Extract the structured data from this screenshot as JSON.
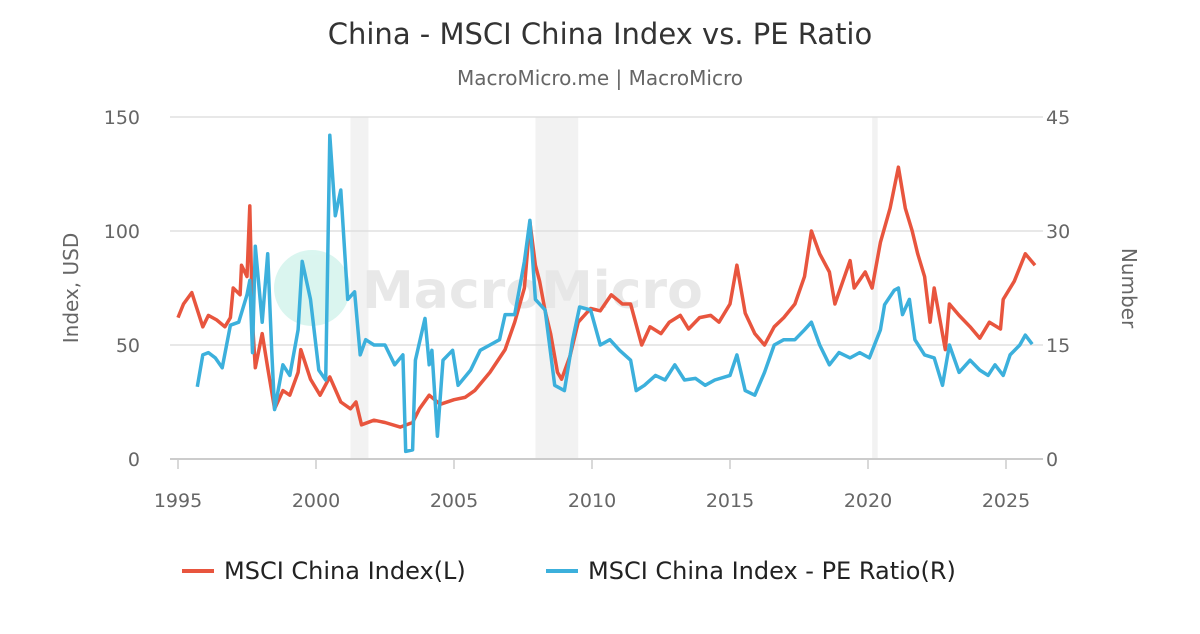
{
  "chart_data": {
    "type": "line",
    "title": "China - MSCI China Index vs. PE Ratio",
    "subtitle": "MacroMicro.me | MacroMicro",
    "watermark": "MacroMicro",
    "x_ticks": [
      "1995",
      "2000",
      "2005",
      "2010",
      "2015",
      "2020",
      "2025"
    ],
    "xlim": [
      1995,
      2026.4
    ],
    "y_left": {
      "label": "Index, USD",
      "ylim": [
        0,
        150
      ],
      "ticks": [
        "0",
        "50",
        "100",
        "150"
      ]
    },
    "y_right": {
      "label": "Number",
      "ylim": [
        0,
        45
      ],
      "ticks": [
        "0",
        "15",
        "30",
        "45"
      ]
    },
    "grid": true,
    "legend_position": "bottom",
    "shaded_periods": [
      [
        2001.25,
        2001.9
      ],
      [
        2007.95,
        2009.5
      ],
      [
        2020.15,
        2020.35
      ]
    ],
    "colors": {
      "index": "#e8553e",
      "pe": "#3cb0dc",
      "shade": "#f2f2f2"
    },
    "series": [
      {
        "name": "MSCI China Index(L)",
        "axis": "left",
        "x": [
          1995.0,
          1995.2,
          1995.5,
          1995.9,
          1996.1,
          1996.4,
          1996.7,
          1996.9,
          1997.0,
          1997.25,
          1997.3,
          1997.5,
          1997.6,
          1997.7,
          1997.8,
          1998.05,
          1998.25,
          1998.5,
          1998.8,
          1999.05,
          1999.35,
          1999.45,
          1999.8,
          2000.15,
          2000.5,
          2000.9,
          2001.25,
          2001.45,
          2001.65,
          2002.1,
          2002.5,
          2003.05,
          2003.5,
          2003.75,
          2004.1,
          2004.5,
          2005.0,
          2005.4,
          2005.75,
          2006.3,
          2006.85,
          2007.2,
          2007.55,
          2007.75,
          2007.95,
          2008.1,
          2008.3,
          2008.5,
          2008.75,
          2008.9,
          2009.2,
          2009.5,
          2009.95,
          2010.3,
          2010.7,
          2011.1,
          2011.4,
          2011.8,
          2012.1,
          2012.5,
          2012.8,
          2013.2,
          2013.5,
          2013.9,
          2014.3,
          2014.6,
          2015.0,
          2015.25,
          2015.55,
          2015.9,
          2016.25,
          2016.6,
          2016.95,
          2017.35,
          2017.7,
          2017.95,
          2018.25,
          2018.6,
          2018.8,
          2019.15,
          2019.35,
          2019.5,
          2019.9,
          2020.15,
          2020.45,
          2020.8,
          2021.1,
          2021.35,
          2021.6,
          2021.8,
          2022.05,
          2022.25,
          2022.4,
          2022.8,
          2022.95,
          2023.3,
          2023.7,
          2024.05,
          2024.4,
          2024.8,
          2024.9,
          2025.3,
          2025.7,
          2026.05
        ],
        "values": [
          62,
          68,
          73,
          58,
          63,
          61,
          58,
          62,
          75,
          72,
          85,
          80,
          111,
          60,
          40,
          55,
          40,
          22,
          30,
          28,
          38,
          48,
          35,
          28,
          36,
          25,
          22,
          25,
          15,
          17,
          16,
          14,
          16,
          22,
          28,
          24,
          26,
          27,
          30,
          38,
          48,
          60,
          75,
          104,
          85,
          78,
          65,
          55,
          38,
          35,
          45,
          60,
          66,
          65,
          72,
          68,
          68,
          50,
          58,
          55,
          60,
          63,
          57,
          62,
          63,
          60,
          68,
          85,
          64,
          55,
          50,
          58,
          62,
          68,
          80,
          100,
          90,
          82,
          68,
          80,
          87,
          75,
          82,
          75,
          95,
          110,
          128,
          110,
          100,
          90,
          80,
          60,
          75,
          48,
          68,
          63,
          58,
          53,
          60,
          57,
          70,
          78,
          90,
          85
        ]
      },
      {
        "name": "MSCI China Index - PE Ratio(R)",
        "axis": "right",
        "x": [
          1995.7,
          1995.9,
          1996.1,
          1996.35,
          1996.6,
          1996.9,
          1997.2,
          1997.5,
          1997.6,
          1997.7,
          1997.8,
          1998.05,
          1998.25,
          1998.4,
          1998.5,
          1998.8,
          1999.05,
          1999.35,
          1999.5,
          1999.8,
          2000.1,
          2000.35,
          2000.5,
          2000.7,
          2000.9,
          2001.15,
          2001.4,
          2001.6,
          2001.8,
          2002.1,
          2002.5,
          2002.85,
          2003.15,
          2003.25,
          2003.5,
          2003.6,
          2003.95,
          2004.1,
          2004.2,
          2004.4,
          2004.6,
          2004.95,
          2005.15,
          2005.6,
          2005.95,
          2006.3,
          2006.65,
          2006.85,
          2007.2,
          2007.55,
          2007.75,
          2007.95,
          2008.3,
          2008.65,
          2009.0,
          2009.3,
          2009.55,
          2009.95,
          2010.3,
          2010.65,
          2011.0,
          2011.4,
          2011.6,
          2011.9,
          2012.3,
          2012.65,
          2013.0,
          2013.35,
          2013.75,
          2014.1,
          2014.45,
          2015.0,
          2015.25,
          2015.55,
          2015.9,
          2016.25,
          2016.6,
          2016.95,
          2017.35,
          2017.7,
          2017.95,
          2018.25,
          2018.6,
          2018.95,
          2019.35,
          2019.7,
          2020.05,
          2020.45,
          2020.6,
          2020.95,
          2021.1,
          2021.25,
          2021.5,
          2021.7,
          2022.05,
          2022.4,
          2022.7,
          2022.95,
          2023.3,
          2023.7,
          2024.05,
          2024.35,
          2024.6,
          2024.9,
          2025.15,
          2025.5,
          2025.7,
          2025.95
        ],
        "values": [
          9.5,
          13.7,
          14,
          13.3,
          12,
          17.6,
          18,
          21.6,
          23.5,
          14,
          28,
          18,
          27,
          14,
          6.5,
          12.4,
          11,
          17,
          26,
          21,
          11.7,
          10.4,
          42.6,
          32,
          35.4,
          21,
          22,
          13.7,
          15.7,
          15,
          15,
          12.4,
          13.7,
          1,
          1.2,
          13,
          18.5,
          12.4,
          14.3,
          3,
          13,
          14.3,
          9.7,
          11.7,
          14.3,
          15,
          15.7,
          19,
          19,
          26,
          31.4,
          21,
          19.6,
          9.7,
          9,
          15.7,
          20,
          19.6,
          15,
          15.7,
          14.3,
          13,
          9,
          9.7,
          11,
          10.4,
          12.4,
          10.4,
          10.6,
          9.7,
          10.4,
          11,
          13.7,
          9,
          8.4,
          11.4,
          15,
          15.7,
          15.7,
          17,
          18,
          15,
          12.4,
          14,
          13.3,
          14,
          13.3,
          17,
          20.3,
          22.2,
          22.5,
          19,
          21,
          15.7,
          13.7,
          13.3,
          9.7,
          15,
          11.4,
          13,
          11.7,
          11,
          12.4,
          11,
          13.7,
          15,
          16.3,
          15.1
        ]
      }
    ]
  }
}
